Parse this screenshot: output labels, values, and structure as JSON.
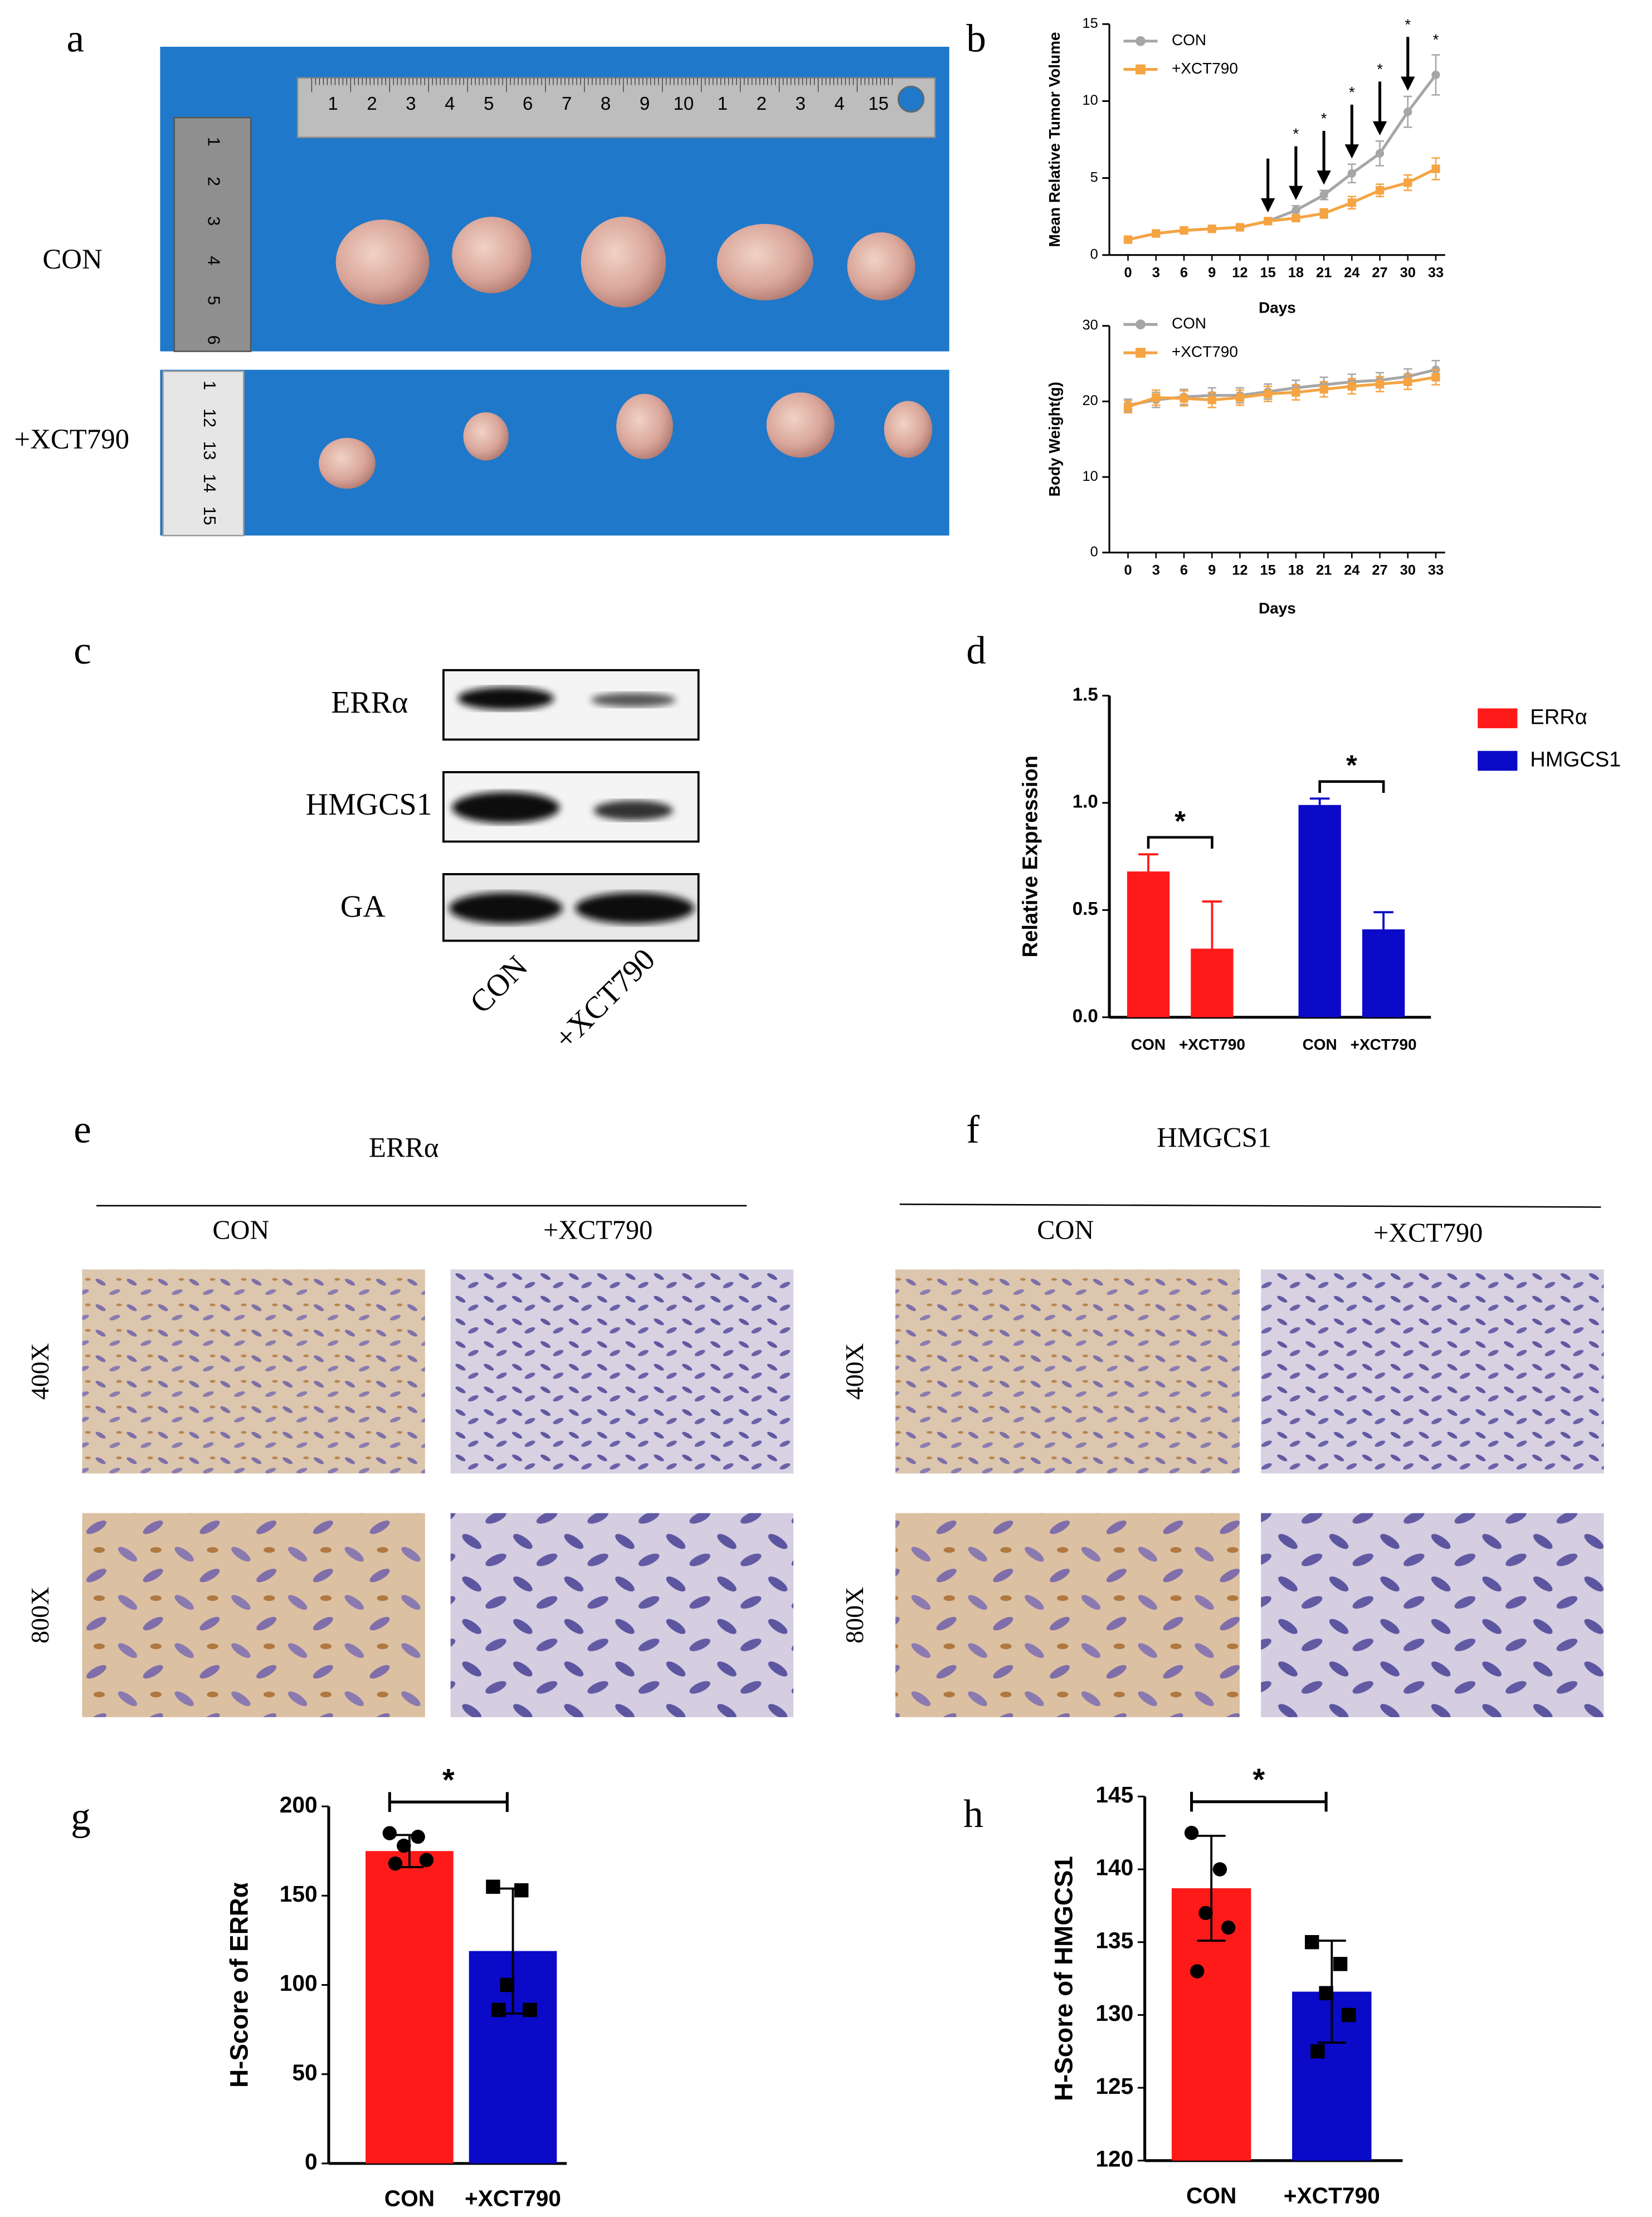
{
  "panel_labels": [
    "a",
    "b",
    "c",
    "d",
    "e",
    "f",
    "g",
    "h"
  ],
  "photo": {
    "rows": [
      "CON",
      "+XCT790"
    ],
    "ruler_top": [
      "1",
      "2",
      "3",
      "4",
      "5",
      "6",
      "7",
      "8",
      "9",
      "10",
      "1",
      "2",
      "3",
      "4",
      "15"
    ],
    "ruler_left": [
      "1",
      "2",
      "3",
      "4",
      "5",
      "6"
    ],
    "ruler_bottom": [
      "1",
      "12",
      "13",
      "14",
      "15"
    ]
  },
  "blot": {
    "proteins": [
      "ERRα",
      "HMGCS1",
      "GA"
    ],
    "lanes": [
      "CON",
      "+XCT790"
    ]
  },
  "ihc": [
    {
      "title": "ERRα",
      "columns": [
        "CON",
        "+XCT790"
      ],
      "rows": [
        "400X",
        "800X"
      ]
    },
    {
      "title": "HMGCS1",
      "columns": [
        "CON",
        "+XCT790"
      ],
      "rows": [
        "400X",
        "800X"
      ]
    }
  ],
  "chart_data": [
    {
      "type": "line",
      "ylabel": "Mean Relative Tumor Volume",
      "xlabel": "Days",
      "x": [
        0,
        3,
        6,
        9,
        12,
        15,
        18,
        21,
        24,
        27,
        30,
        33
      ],
      "xlim": [
        -2,
        34
      ],
      "xticks": [
        0,
        3,
        6,
        9,
        12,
        15,
        18,
        21,
        24,
        27,
        30,
        33
      ],
      "ylim": [
        0,
        15
      ],
      "yticks": [
        0,
        5,
        10,
        15
      ],
      "legend": "upper left",
      "series": [
        {
          "name": "CON",
          "color": "#a6a6a6",
          "values": [
            1,
            1.4,
            1.6,
            1.7,
            1.8,
            2.2,
            2.9,
            3.9,
            5.3,
            6.6,
            9.3,
            11.7
          ],
          "errors": [
            0.1,
            0.1,
            0.1,
            0.1,
            0.1,
            0.2,
            0.3,
            0.3,
            0.6,
            0.8,
            1.0,
            1.3
          ]
        },
        {
          "name": "+XCT790",
          "color": "#f5a442",
          "values": [
            1,
            1.4,
            1.6,
            1.7,
            1.8,
            2.2,
            2.4,
            2.7,
            3.4,
            4.2,
            4.7,
            5.6
          ],
          "errors": [
            0.1,
            0.1,
            0.1,
            0.1,
            0.1,
            0.2,
            0.2,
            0.3,
            0.4,
            0.4,
            0.5,
            0.7
          ]
        }
      ],
      "annotations": [
        {
          "x": 18,
          "text": "*"
        },
        {
          "x": 21,
          "text": "*"
        },
        {
          "x": 24,
          "text": "*"
        },
        {
          "x": 27,
          "text": "*"
        },
        {
          "x": 30,
          "text": "*"
        },
        {
          "x": 33,
          "text": "*"
        }
      ],
      "arrows": [
        15,
        18,
        21,
        24,
        27,
        30
      ]
    },
    {
      "type": "line",
      "ylabel": "Body Weight(g)",
      "xlabel": "Days",
      "x": [
        0,
        3,
        6,
        9,
        12,
        15,
        18,
        21,
        24,
        27,
        30,
        33
      ],
      "xlim": [
        -2,
        34
      ],
      "xticks": [
        0,
        3,
        6,
        9,
        12,
        15,
        18,
        21,
        24,
        27,
        30,
        33
      ],
      "ylim": [
        0,
        30
      ],
      "yticks": [
        0,
        10,
        20,
        30
      ],
      "legend": "upper left",
      "series": [
        {
          "name": "CON",
          "color": "#a6a6a6",
          "values": [
            19.5,
            20.2,
            20.6,
            20.8,
            20.8,
            21.3,
            21.8,
            22.2,
            22.6,
            22.8,
            23.3,
            24.2
          ],
          "errors": [
            0.8,
            1,
            1,
            1,
            1,
            1,
            1,
            1,
            1,
            1,
            1,
            1.2
          ]
        },
        {
          "name": "+XCT790",
          "color": "#f5a442",
          "values": [
            19.3,
            20.5,
            20.4,
            20.2,
            20.5,
            21,
            21.2,
            21.6,
            22,
            22.3,
            22.6,
            23.2
          ],
          "errors": [
            0.8,
            1,
            1,
            1,
            1,
            1,
            1,
            1,
            1,
            1,
            1,
            1
          ]
        }
      ]
    },
    {
      "type": "bar",
      "ylabel": "Relative Expression",
      "categories": [
        "CON",
        "+XCT790"
      ],
      "series": [
        {
          "name": "ERRα",
          "color": "#ff1a1a",
          "values": [
            0.68,
            0.32
          ],
          "errors": [
            0.08,
            0.22
          ]
        },
        {
          "name": "HMGCS1",
          "color": "#0a0ac8",
          "values": [
            0.99,
            0.41
          ],
          "errors": [
            0.03,
            0.08
          ]
        }
      ],
      "ylim": [
        0,
        1.5
      ],
      "yticks": [
        {
          "value": 0,
          "label": "0.0"
        },
        {
          "value": 0.5,
          "label": "0.5"
        },
        {
          "value": 1,
          "label": "1.0"
        },
        {
          "value": 1.5,
          "label": "1.5"
        }
      ],
      "legend": "upper right",
      "significance": [
        "*",
        "*"
      ]
    },
    {
      "type": "bar",
      "ylabel": "H-Score of ERRα",
      "categories": [
        "CON",
        "+XCT790"
      ],
      "values": [
        175,
        119
      ],
      "errors": [
        9,
        35
      ],
      "colors": [
        "#ff1a1a",
        "#0a0ac8"
      ],
      "points": [
        [
          185,
          183,
          178,
          170,
          168
        ],
        [
          155,
          153,
          100,
          86,
          86
        ]
      ],
      "ylim": [
        0,
        200
      ],
      "yticks": [
        0,
        50,
        100,
        150,
        200
      ],
      "significance": "*"
    },
    {
      "type": "bar",
      "ylabel": "H-Score of HMGCS1",
      "categories": [
        "CON",
        "+XCT790"
      ],
      "values": [
        138.7,
        131.6
      ],
      "errors": [
        3.6,
        3.5
      ],
      "colors": [
        "#ff1a1a",
        "#0a0ac8"
      ],
      "points": [
        [
          142.5,
          140,
          137,
          136,
          133
        ],
        [
          135,
          133.5,
          131.5,
          130,
          127.5
        ]
      ],
      "ylim": [
        120,
        145
      ],
      "yticks": [
        120,
        125,
        130,
        135,
        140,
        145
      ],
      "significance": "*"
    }
  ]
}
